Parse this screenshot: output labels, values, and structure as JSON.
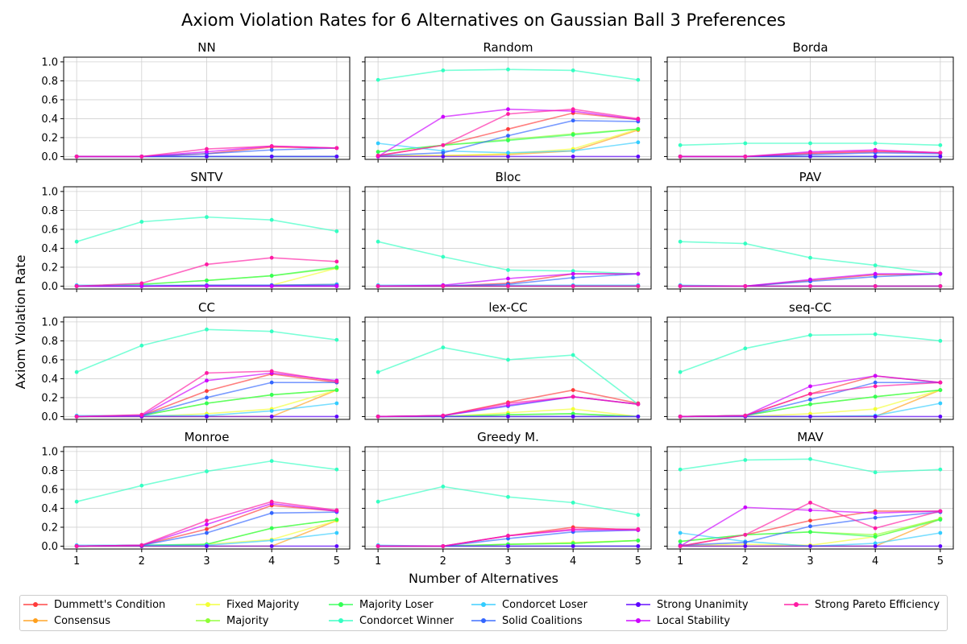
{
  "title": "Axiom Violation Rates for 6 Alternatives on Gaussian Ball 3 Preferences",
  "xlabel": "Number of Alternatives",
  "ylabel": "Axiom Violation Rate",
  "chart_data": {
    "type": "line",
    "x": [
      1,
      2,
      3,
      4,
      5
    ],
    "xticks": [
      "1",
      "2",
      "3",
      "4",
      "5"
    ],
    "yticks": [
      "0.0",
      "0.2",
      "0.4",
      "0.6",
      "0.8",
      "1.0"
    ],
    "ylim": [
      -0.03,
      1.05
    ],
    "grid": true,
    "legend_position": "bottom",
    "axioms": [
      {
        "name": "Dummett's Condition",
        "color": "#ff3b3b"
      },
      {
        "name": "Consensus",
        "color": "#ff9f1c"
      },
      {
        "name": "Fixed Majority",
        "color": "#f2ff33"
      },
      {
        "name": "Majority",
        "color": "#8dff33"
      },
      {
        "name": "Majority Loser",
        "color": "#33ff55"
      },
      {
        "name": "Condorcet Winner",
        "color": "#33ffc2"
      },
      {
        "name": "Condorcet Loser",
        "color": "#33ccff"
      },
      {
        "name": "Solid Coalitions",
        "color": "#3366ff"
      },
      {
        "name": "Strong Unanimity",
        "color": "#5d00ff"
      },
      {
        "name": "Local Stability",
        "color": "#cc00ff"
      },
      {
        "name": "Strong Pareto Efficiency",
        "color": "#ff1aa3"
      }
    ],
    "panels": [
      {
        "title": "NN",
        "series": [
          [
            0,
            0,
            0.03,
            0.1,
            0.09
          ],
          [
            0,
            0,
            0,
            0,
            0
          ],
          [
            0,
            0,
            0,
            0,
            0
          ],
          [
            0,
            0,
            0,
            0,
            0
          ],
          [
            0,
            0,
            0,
            0,
            0
          ],
          [
            0,
            0,
            0,
            0,
            0
          ],
          [
            0,
            0,
            0,
            0,
            0
          ],
          [
            0,
            0,
            0.03,
            0.07,
            0.09
          ],
          [
            0,
            0,
            0,
            0,
            0
          ],
          [
            0,
            0,
            0.05,
            0.11,
            0.09
          ],
          [
            0,
            0,
            0.08,
            0.11,
            0.09
          ]
        ]
      },
      {
        "title": "Random",
        "series": [
          [
            0.01,
            0.12,
            0.29,
            0.46,
            0.39
          ],
          [
            0,
            0.01,
            0.02,
            0.06,
            0.28
          ],
          [
            0.01,
            0.01,
            0.03,
            0.08,
            0.29
          ],
          [
            0.05,
            0.12,
            0.18,
            0.24,
            0.29
          ],
          [
            0.05,
            0.12,
            0.17,
            0.23,
            0.29
          ],
          [
            0.81,
            0.91,
            0.92,
            0.91,
            0.81
          ],
          [
            0.14,
            0.06,
            0.04,
            0.06,
            0.15
          ],
          [
            0.01,
            0.04,
            0.22,
            0.38,
            0.37
          ],
          [
            0,
            0,
            0,
            0,
            0
          ],
          [
            0,
            0.42,
            0.5,
            0.48,
            0.39
          ],
          [
            0.01,
            0.12,
            0.45,
            0.5,
            0.4
          ]
        ]
      },
      {
        "title": "Borda",
        "series": [
          [
            0,
            0,
            0.03,
            0.05,
            0.04
          ],
          [
            0,
            0,
            0,
            0,
            0
          ],
          [
            0,
            0,
            0,
            0,
            0
          ],
          [
            0,
            0,
            0,
            0,
            0
          ],
          [
            0,
            0,
            0,
            0,
            0
          ],
          [
            0.12,
            0.14,
            0.14,
            0.14,
            0.12
          ],
          [
            0,
            0,
            0,
            0,
            0
          ],
          [
            0,
            0,
            0.02,
            0.04,
            0.03
          ],
          [
            0,
            0,
            0,
            0,
            0
          ],
          [
            0,
            0,
            0.05,
            0.07,
            0.04
          ],
          [
            0,
            0,
            0.04,
            0.06,
            0.04
          ]
        ]
      },
      {
        "title": "SNTV",
        "series": [
          [
            0,
            0,
            0.01,
            0.01,
            0.02
          ],
          [
            0,
            0,
            0,
            0,
            0
          ],
          [
            0,
            0,
            0,
            0.01,
            0.19
          ],
          [
            0,
            0.02,
            0.06,
            0.11,
            0.19
          ],
          [
            0,
            0.02,
            0.06,
            0.11,
            0.2
          ],
          [
            0.47,
            0.68,
            0.73,
            0.7,
            0.58
          ],
          [
            0.01,
            0.01,
            0.01,
            0.01,
            0.02
          ],
          [
            0,
            0,
            0.01,
            0.01,
            0.01
          ],
          [
            0,
            0,
            0,
            0,
            0
          ],
          [
            0,
            0,
            0,
            0,
            0
          ],
          [
            0,
            0.03,
            0.23,
            0.3,
            0.26
          ]
        ]
      },
      {
        "title": "Bloc",
        "series": [
          [
            0,
            0,
            0.03,
            0.13,
            0.13
          ],
          [
            0,
            0,
            0,
            0,
            0
          ],
          [
            0,
            0,
            0,
            0,
            0
          ],
          [
            0,
            0,
            0,
            0,
            0
          ],
          [
            0,
            0,
            0,
            0,
            0
          ],
          [
            0.47,
            0.31,
            0.17,
            0.16,
            0.13
          ],
          [
            0.01,
            0.01,
            0.01,
            0.01,
            0.01
          ],
          [
            0,
            0,
            0.02,
            0.09,
            0.13
          ],
          [
            0,
            0,
            0,
            0,
            0
          ],
          [
            0,
            0.01,
            0.08,
            0.13,
            0.13
          ],
          [
            0,
            0,
            0,
            0,
            0
          ]
        ]
      },
      {
        "title": "PAV",
        "series": [
          [
            0,
            0,
            0.06,
            0.12,
            0.13
          ],
          [
            0,
            0,
            0,
            0,
            0
          ],
          [
            0,
            0,
            0,
            0,
            0
          ],
          [
            0,
            0,
            0,
            0,
            0
          ],
          [
            0,
            0,
            0,
            0,
            0
          ],
          [
            0.47,
            0.45,
            0.3,
            0.22,
            0.13
          ],
          [
            0.01,
            0,
            0,
            0,
            0
          ],
          [
            0,
            0,
            0.05,
            0.1,
            0.13
          ],
          [
            0,
            0,
            0,
            0,
            0
          ],
          [
            0,
            0,
            0.07,
            0.13,
            0.13
          ],
          [
            0,
            0,
            0,
            0,
            0
          ]
        ]
      },
      {
        "title": "CC",
        "series": [
          [
            0,
            0.01,
            0.27,
            0.45,
            0.36
          ],
          [
            0,
            0,
            0,
            0,
            0.28
          ],
          [
            0,
            0,
            0.03,
            0.08,
            0.28
          ],
          [
            0,
            0.01,
            0.14,
            0.23,
            0.28
          ],
          [
            0,
            0.01,
            0.14,
            0.23,
            0.28
          ],
          [
            0.47,
            0.75,
            0.92,
            0.9,
            0.81
          ],
          [
            0.01,
            0.01,
            0.01,
            0.06,
            0.14
          ],
          [
            0,
            0.01,
            0.2,
            0.36,
            0.36
          ],
          [
            0,
            0,
            0,
            0,
            0
          ],
          [
            0,
            0.01,
            0.38,
            0.46,
            0.38
          ],
          [
            0,
            0.02,
            0.46,
            0.48,
            0.37
          ]
        ]
      },
      {
        "title": "lex-CC",
        "series": [
          [
            0,
            0.01,
            0.15,
            0.28,
            0.14
          ],
          [
            0,
            0,
            0,
            0,
            0
          ],
          [
            0,
            0,
            0.04,
            0.08,
            0
          ],
          [
            0,
            0,
            0.02,
            0.03,
            0
          ],
          [
            0,
            0,
            0.02,
            0.03,
            0
          ],
          [
            0.47,
            0.73,
            0.6,
            0.65,
            0.13
          ],
          [
            0,
            0,
            0,
            0,
            0
          ],
          [
            0,
            0.01,
            0.11,
            0.21,
            0.13
          ],
          [
            0,
            0,
            0,
            0,
            0
          ],
          [
            0,
            0.01,
            0.12,
            0.21,
            0.13
          ],
          [
            0,
            0.01,
            0.14,
            0.21,
            0.13
          ]
        ]
      },
      {
        "title": "seq-CC",
        "series": [
          [
            0,
            0.01,
            0.24,
            0.43,
            0.36
          ],
          [
            0,
            0,
            0,
            0,
            0.28
          ],
          [
            0,
            0,
            0.03,
            0.08,
            0.28
          ],
          [
            0,
            0.01,
            0.13,
            0.21,
            0.28
          ],
          [
            0,
            0.01,
            0.13,
            0.21,
            0.28
          ],
          [
            0.47,
            0.72,
            0.86,
            0.87,
            0.8
          ],
          [
            0,
            0,
            0,
            0.01,
            0.14
          ],
          [
            0,
            0.01,
            0.18,
            0.36,
            0.36
          ],
          [
            0,
            0,
            0,
            0,
            0
          ],
          [
            0,
            0.01,
            0.32,
            0.43,
            0.36
          ],
          [
            0,
            0.01,
            0.24,
            0.32,
            0.36
          ]
        ]
      },
      {
        "title": "Monroe",
        "series": [
          [
            0,
            0.01,
            0.18,
            0.43,
            0.37
          ],
          [
            0,
            0,
            0,
            0,
            0.27
          ],
          [
            0,
            0,
            0.02,
            0.07,
            0.27
          ],
          [
            0,
            0.01,
            0.02,
            0.19,
            0.28
          ],
          [
            0,
            0.01,
            0.02,
            0.19,
            0.28
          ],
          [
            0.47,
            0.64,
            0.79,
            0.9,
            0.81
          ],
          [
            0.01,
            0.01,
            0.01,
            0.06,
            0.14
          ],
          [
            0,
            0.01,
            0.14,
            0.35,
            0.36
          ],
          [
            0,
            0,
            0,
            0,
            0
          ],
          [
            0,
            0.01,
            0.23,
            0.45,
            0.37
          ],
          [
            0,
            0.01,
            0.27,
            0.47,
            0.38
          ]
        ]
      },
      {
        "title": "Greedy M.",
        "series": [
          [
            0,
            0,
            0.11,
            0.2,
            0.17
          ],
          [
            0,
            0,
            0,
            0,
            0
          ],
          [
            0,
            0,
            0.02,
            0.04,
            0.06
          ],
          [
            0,
            0,
            0.02,
            0.03,
            0.06
          ],
          [
            0,
            0,
            0.02,
            0.03,
            0.06
          ],
          [
            0.47,
            0.63,
            0.52,
            0.46,
            0.33
          ],
          [
            0.01,
            0,
            0,
            0,
            0
          ],
          [
            0,
            0,
            0.08,
            0.15,
            0.17
          ],
          [
            0,
            0,
            0,
            0,
            0
          ],
          [
            0,
            0,
            0.11,
            0.17,
            0.17
          ],
          [
            0,
            0,
            0.11,
            0.18,
            0.18
          ]
        ]
      },
      {
        "title": "MAV",
        "series": [
          [
            0,
            0.12,
            0.27,
            0.37,
            0.37
          ],
          [
            0,
            0,
            0,
            0,
            0.29
          ],
          [
            0.01,
            0.02,
            0.01,
            0.1,
            0.29
          ],
          [
            0.05,
            0.12,
            0.15,
            0.12,
            0.29
          ],
          [
            0.05,
            0.12,
            0.15,
            0.1,
            0.28
          ],
          [
            0.81,
            0.91,
            0.92,
            0.78,
            0.81
          ],
          [
            0.14,
            0.05,
            0,
            0.03,
            0.14
          ],
          [
            0.01,
            0.04,
            0.21,
            0.3,
            0.36
          ],
          [
            0,
            0,
            0,
            0,
            0
          ],
          [
            0,
            0.41,
            0.38,
            0.35,
            0.37
          ],
          [
            0,
            0.12,
            0.46,
            0.19,
            0.37
          ]
        ]
      }
    ]
  }
}
